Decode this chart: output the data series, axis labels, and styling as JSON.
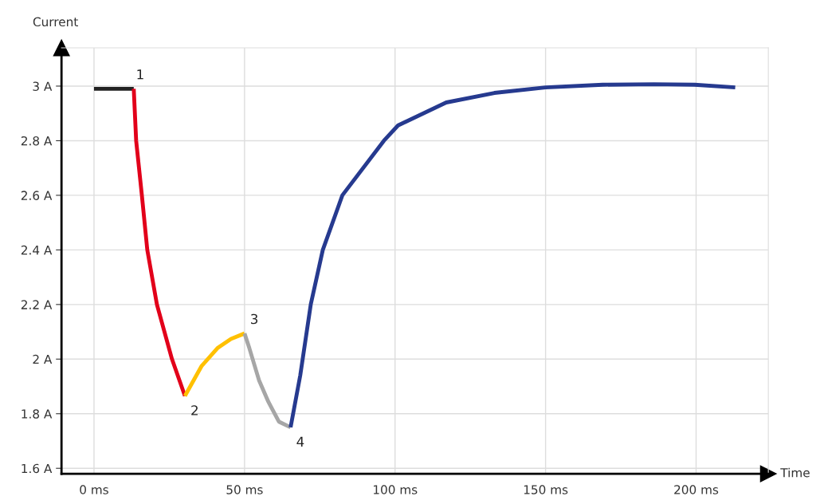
{
  "chart_data": {
    "type": "line",
    "xlabel": "Time",
    "ylabel": "Current",
    "xlim": [
      -10.8,
      224
    ],
    "ylim": [
      1.58,
      3.14
    ],
    "xticks": [
      {
        "value": 0,
        "label": "0 ms"
      },
      {
        "value": 50,
        "label": "50 ms"
      },
      {
        "value": 100,
        "label": "100 ms"
      },
      {
        "value": 150,
        "label": "150 ms"
      },
      {
        "value": 200,
        "label": "200 ms"
      }
    ],
    "yticks": [
      {
        "value": 1.6,
        "label": "1.6 A"
      },
      {
        "value": 1.8,
        "label": "1.8 A"
      },
      {
        "value": 2,
        "label": "2 A"
      },
      {
        "value": 2.2,
        "label": "2.2 A"
      },
      {
        "value": 2.4,
        "label": "2.4 A"
      },
      {
        "value": 2.6,
        "label": "2.6 A"
      },
      {
        "value": 2.8,
        "label": "2.8 A"
      },
      {
        "value": 3,
        "label": "3 A"
      }
    ],
    "grid": true,
    "marker": "none",
    "line_style": "solid",
    "series": [
      {
        "color": "#222222",
        "x": [
          0,
          13.2
        ],
        "values": [
          2.99,
          2.99
        ]
      },
      {
        "color": "#e2001a",
        "x": [
          13.2,
          14,
          15.9,
          17.7,
          20.9,
          25.9,
          30.2
        ],
        "values": [
          2.99,
          2.8,
          2.6,
          2.4,
          2.2,
          2.0,
          1.865
        ]
      },
      {
        "color": "#ffc000",
        "x": [
          30.2,
          35.7,
          41,
          45.5,
          50
        ],
        "values": [
          1.865,
          1.974,
          2.04,
          2.074,
          2.094
        ]
      },
      {
        "color": "#a6a6a6",
        "x": [
          50,
          51.6,
          54.8,
          57.9,
          61.4,
          65.3
        ],
        "values": [
          2.094,
          2.04,
          1.923,
          1.844,
          1.771,
          1.75
        ]
      },
      {
        "color": "#263a8f",
        "x": [
          65.3,
          68.5,
          72,
          76,
          82.5,
          96.3,
          101,
          117,
          133,
          150,
          169,
          186,
          199.5,
          213
        ],
        "values": [
          1.75,
          1.94,
          2.2,
          2.4,
          2.6,
          2.8,
          2.856,
          2.94,
          2.975,
          2.995,
          3.005,
          3.007,
          3.005,
          2.995
        ]
      }
    ],
    "annotations": [
      {
        "text": "1",
        "x": 13.2,
        "y": 2.99
      },
      {
        "text": "2",
        "x": 30.2,
        "y": 1.865
      },
      {
        "text": "3",
        "x": 50,
        "y": 2.094
      },
      {
        "text": "4",
        "x": 65.3,
        "y": 1.75
      }
    ]
  }
}
